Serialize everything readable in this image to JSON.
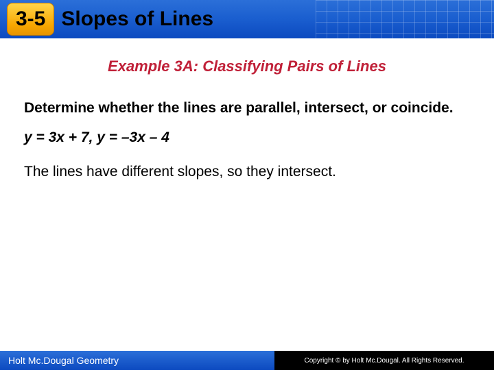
{
  "header": {
    "section_number": "3-5",
    "title": "Slopes of Lines",
    "bar_gradient_top": "#2b6fd8",
    "bar_gradient_bottom": "#0c4ac0",
    "badge_gradient_top": "#ffd54a",
    "badge_gradient_bottom": "#e89400",
    "title_color": "#000000",
    "title_fontsize": 30
  },
  "example": {
    "title": "Example 3A: Classifying Pairs of Lines",
    "title_color": "#c02038",
    "title_fontsize": 22
  },
  "prompt": {
    "text": "Determine whether the lines are parallel, intersect, or coincide.",
    "fontsize": 21,
    "fontweight": "700",
    "color": "#000000"
  },
  "equations": {
    "text": "y = 3x + 7, y = –3x – 4",
    "fontsize": 21,
    "fontstyle": "italic",
    "fontweight": "700"
  },
  "answer": {
    "text": "The lines have different slopes, so they intersect.",
    "fontsize": 21,
    "color": "#000000"
  },
  "footer": {
    "left_text": "Holt Mc.Dougal Geometry",
    "right_text": "Copyright © by Holt Mc.Dougal. All Rights Reserved.",
    "left_bg": "#1a5ecf",
    "right_bg": "#000000",
    "text_color": "#ffffff"
  },
  "background_color": "#ffffff"
}
